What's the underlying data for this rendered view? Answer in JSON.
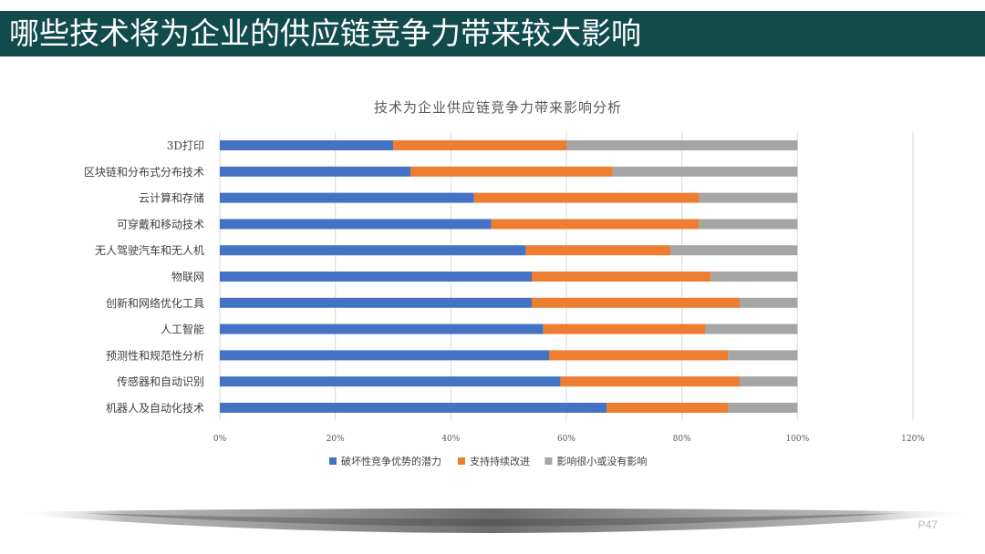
{
  "slide": {
    "title": "哪些技术将为企业的供应链竞争力带来较大影响",
    "page_number": "P47"
  },
  "colors": {
    "title_band": "#124b4b",
    "series": [
      "#4472c4",
      "#ed7d31",
      "#a5a5a5"
    ]
  },
  "chart_data": {
    "type": "bar",
    "orientation": "horizontal",
    "stacked": true,
    "title": "技术为企业供应链竞争力带来影响分析",
    "categories": [
      "3D打印",
      "区块链和分布式分布技术",
      "云计算和存储",
      "可穿戴和移动技术",
      "无人驾驶汽车和无人机",
      "物联网",
      "创新和网络优化工具",
      "人工智能",
      "预测性和规范性分析",
      "传感器和自动识别",
      "机器人及自动化技术"
    ],
    "series": [
      {
        "name": "破坏性竞争优势的潜力",
        "values": [
          30,
          33,
          44,
          47,
          53,
          54,
          54,
          56,
          57,
          59,
          67
        ]
      },
      {
        "name": "支持持续改进",
        "values": [
          30,
          35,
          39,
          36,
          25,
          31,
          36,
          28,
          31,
          31,
          21
        ]
      },
      {
        "name": "影响很小或没有影响",
        "values": [
          40,
          32,
          17,
          17,
          22,
          15,
          10,
          16,
          12,
          10,
          12
        ]
      }
    ],
    "x_ticks": [
      "0%",
      "20%",
      "40%",
      "60%",
      "80%",
      "100%",
      "120%"
    ],
    "xlim": [
      0,
      120
    ],
    "grid": true,
    "legend_position": "bottom"
  }
}
